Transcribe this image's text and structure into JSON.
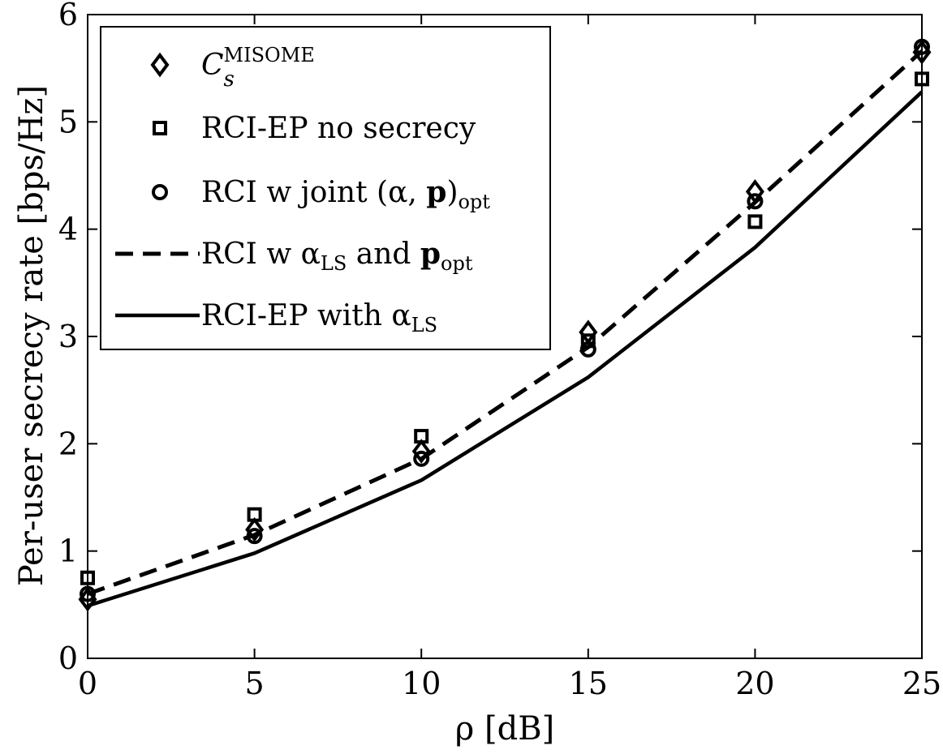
{
  "chart_data": {
    "type": "line",
    "title": "",
    "xlabel": "ρ [dB]",
    "ylabel": "Per-user secrecy rate [bps/Hz]",
    "xlim": [
      0,
      25
    ],
    "ylim": [
      0,
      6
    ],
    "xticks": [
      0,
      5,
      10,
      15,
      20,
      25
    ],
    "yticks": [
      0,
      1,
      2,
      3,
      4,
      5,
      6
    ],
    "grid": false,
    "legend_position": "top-left",
    "x": [
      0,
      5,
      10,
      15,
      20,
      25
    ],
    "series": [
      {
        "name": "C_s^MISOME",
        "legend": {
          "base": "C",
          "sub": "s",
          "sup": "MISOME"
        },
        "marker": "diamond",
        "line": "none",
        "values": [
          0.55,
          1.2,
          1.93,
          3.04,
          4.35,
          5.65
        ]
      },
      {
        "name": "RCI-EP no secrecy",
        "legend": {
          "text": "RCI-EP no secrecy"
        },
        "marker": "square",
        "line": "none",
        "values": [
          0.75,
          1.34,
          2.07,
          2.96,
          4.07,
          5.4
        ]
      },
      {
        "name": "RCI w joint (α, p)opt",
        "legend": {
          "prefix": "RCI w joint (α, ",
          "bold": "p",
          "suffix": ")",
          "sub": "opt"
        },
        "marker": "circle",
        "line": "none",
        "values": [
          0.6,
          1.14,
          1.86,
          2.88,
          4.26,
          5.7
        ]
      },
      {
        "name": "RCI w αLS and popt",
        "legend": {
          "prefix": "RCI w α",
          "sub1": "LS",
          "mid": " and ",
          "bold": "p",
          "sub2": "opt"
        },
        "marker": "none",
        "line": "dashed",
        "values": [
          0.6,
          1.15,
          1.86,
          2.9,
          4.25,
          5.66
        ]
      },
      {
        "name": "RCI-EP with αLS",
        "legend": {
          "prefix": "RCI-EP with α",
          "sub": "LS"
        },
        "marker": "none",
        "line": "solid",
        "values": [
          0.49,
          0.98,
          1.66,
          2.62,
          3.83,
          5.28
        ]
      }
    ]
  },
  "colors": {
    "ink": "#000000",
    "background": "#ffffff"
  }
}
